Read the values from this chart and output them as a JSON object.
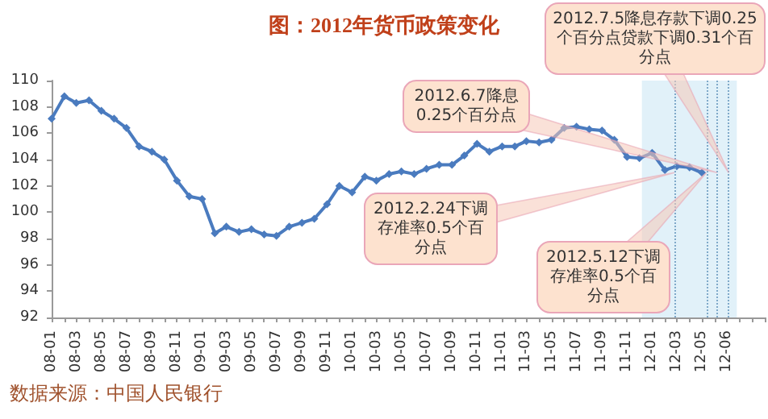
{
  "chart_data": {
    "type": "line",
    "title": "图：2012年货币政策变化",
    "x": [
      "2008-01",
      "2008-02",
      "2008-03",
      "2008-04",
      "2008-05",
      "2008-06",
      "2008-07",
      "2008-08",
      "2008-09",
      "2008-10",
      "2008-11",
      "2008-12",
      "2009-01",
      "2009-02",
      "2009-03",
      "2009-04",
      "2009-05",
      "2009-06",
      "2009-07",
      "2009-08",
      "2009-09",
      "2009-10",
      "2009-11",
      "2009-12",
      "2010-01",
      "2010-02",
      "2010-03",
      "2010-04",
      "2010-05",
      "2010-06",
      "2010-07",
      "2010-08",
      "2010-09",
      "2010-10",
      "2010-11",
      "2010-12",
      "2011-01",
      "2011-02",
      "2011-03",
      "2011-04",
      "2011-05",
      "2011-06",
      "2011-07",
      "2011-08",
      "2011-09",
      "2011-10",
      "2011-11",
      "2011-12",
      "2012-01",
      "2012-02",
      "2012-03",
      "2012-04",
      "2012-05"
    ],
    "series": [
      {
        "color": "#4a7bbf",
        "values": [
          107.1,
          108.8,
          108.3,
          108.5,
          107.7,
          107.1,
          106.4,
          105.0,
          104.6,
          104.0,
          102.4,
          101.2,
          101.0,
          98.4,
          98.9,
          98.5,
          98.7,
          98.3,
          98.2,
          98.9,
          99.2,
          99.5,
          100.6,
          102.0,
          101.5,
          102.7,
          102.4,
          102.9,
          103.1,
          102.9,
          103.3,
          103.6,
          103.6,
          104.3,
          105.2,
          104.6,
          105.0,
          105.0,
          105.4,
          105.3,
          105.5,
          106.4,
          106.5,
          106.3,
          106.2,
          105.5,
          104.2,
          104.1,
          104.5,
          103.2,
          103.5,
          103.4,
          103.0
        ]
      }
    ],
    "xlim": [
      "2008-01",
      "2012-10"
    ],
    "xticks": [
      {
        "value": "2008-01",
        "label": "08-01"
      },
      {
        "value": "2008-02",
        "label": null
      },
      {
        "value": "2008-03",
        "label": "08-03"
      },
      {
        "value": "2008-04",
        "label": null
      },
      {
        "value": "2008-05",
        "label": "08-05"
      },
      {
        "value": "2008-06",
        "label": null
      },
      {
        "value": "2008-07",
        "label": "08-07"
      },
      {
        "value": "2008-08",
        "label": null
      },
      {
        "value": "2008-09",
        "label": "08-09"
      },
      {
        "value": "2008-10",
        "label": null
      },
      {
        "value": "2008-11",
        "label": "08-11"
      },
      {
        "value": "2008-12",
        "label": null
      },
      {
        "value": "2009-01",
        "label": "09-01"
      },
      {
        "value": "2009-02",
        "label": null
      },
      {
        "value": "2009-03",
        "label": "09-03"
      },
      {
        "value": "2009-04",
        "label": null
      },
      {
        "value": "2009-05",
        "label": "09-05"
      },
      {
        "value": "2009-06",
        "label": null
      },
      {
        "value": "2009-07",
        "label": "09-07"
      },
      {
        "value": "2009-08",
        "label": null
      },
      {
        "value": "2009-09",
        "label": "09-09"
      },
      {
        "value": "2009-10",
        "label": null
      },
      {
        "value": "2009-11",
        "label": "09-11"
      },
      {
        "value": "2009-12",
        "label": null
      },
      {
        "value": "2010-01",
        "label": "10-01"
      },
      {
        "value": "2010-02",
        "label": null
      },
      {
        "value": "2010-03",
        "label": "10-03"
      },
      {
        "value": "2010-04",
        "label": null
      },
      {
        "value": "2010-05",
        "label": "10-05"
      },
      {
        "value": "2010-06",
        "label": null
      },
      {
        "value": "2010-07",
        "label": "10-07"
      },
      {
        "value": "2010-08",
        "label": null
      },
      {
        "value": "2010-09",
        "label": "10-09"
      },
      {
        "value": "2010-10",
        "label": null
      },
      {
        "value": "2010-11",
        "label": "10-11"
      },
      {
        "value": "2010-12",
        "label": null
      },
      {
        "value": "2011-01",
        "label": "11-01"
      },
      {
        "value": "2011-02",
        "label": null
      },
      {
        "value": "2011-03",
        "label": "11-03"
      },
      {
        "value": "2011-04",
        "label": null
      },
      {
        "value": "2011-05",
        "label": "11-05"
      },
      {
        "value": "2011-06",
        "label": null
      },
      {
        "value": "2011-07",
        "label": "11-07"
      },
      {
        "value": "2011-08",
        "label": null
      },
      {
        "value": "2011-09",
        "label": "11-09"
      },
      {
        "value": "2011-10",
        "label": null
      },
      {
        "value": "2011-11",
        "label": "11-11"
      },
      {
        "value": "2011-12",
        "label": null
      },
      {
        "value": "2012-01",
        "label": "12-01"
      },
      {
        "value": "2012-02",
        "label": null
      },
      {
        "value": "2012-03",
        "label": "12-03"
      },
      {
        "value": "2012-04",
        "label": null
      },
      {
        "value": "2012-05",
        "label": "12-05"
      },
      {
        "value": "2012-06",
        "label": null
      },
      {
        "value": "2012-07",
        "label": "12-06"
      },
      {
        "value": "2012-08",
        "label": null
      },
      {
        "value": "2012-09",
        "label": null
      },
      {
        "value": "2012-10",
        "label": null
      }
    ],
    "ylim": [
      92,
      110
    ],
    "yticks": [
      92,
      94,
      96,
      98,
      100,
      102,
      104,
      106,
      108,
      110
    ],
    "grid": false,
    "marker": "diamond",
    "line_style": "solid",
    "bands": [
      {
        "axis": "x",
        "from": "2011-12-07",
        "to": "2012-07-25",
        "color": "#d9edf7"
      }
    ],
    "ref_lines": [
      {
        "axis": "x",
        "value": "2012-02-24",
        "label": "2012.2.24下调存准率0.5个百分点",
        "color": "#7fa9c9",
        "line_style": "dotted"
      },
      {
        "axis": "x",
        "value": "2012-05-12",
        "label": "2012.5.12下调存准率0.5个百分点",
        "color": "#7fa9c9",
        "line_style": "dotted"
      },
      {
        "axis": "x",
        "value": "2012-06-07",
        "label": "2012.6.7降息0.25个百分点",
        "color": "#7fa9c9",
        "line_style": "dotted"
      },
      {
        "axis": "x",
        "value": "2012-07-05",
        "label": "2012.7.5降息存款下调0.25个百分点贷款下调0.31个百分点",
        "color": "#7fa9c9",
        "line_style": "dotted"
      }
    ],
    "annotations": [
      "数据来源：中国人民银行"
    ]
  }
}
